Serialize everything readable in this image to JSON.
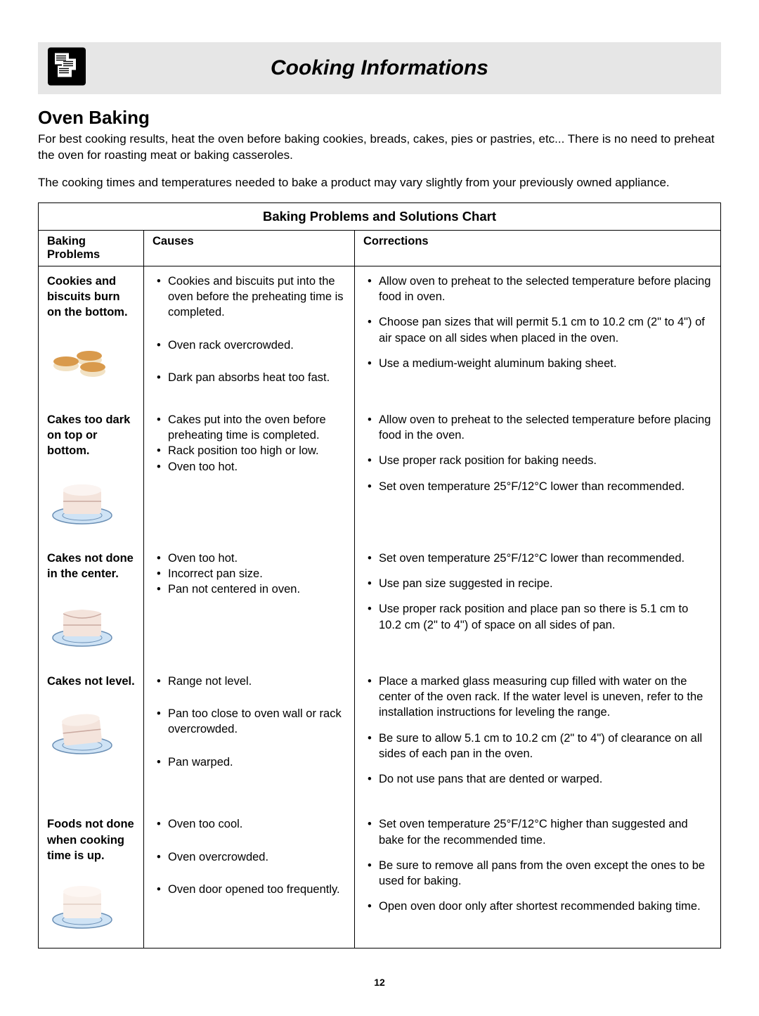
{
  "banner_title": "Cooking Informations",
  "section_heading": "Oven Baking",
  "intro_para1": "For best cooking results, heat the oven before baking cookies, breads, cakes, pies or pastries, etc...  There is no need to preheat the oven for roasting meat or baking casseroles.",
  "intro_para2": "The cooking times and temperatures needed to bake a product may vary slightly from your previously owned appliance.",
  "chart_title": "Baking Problems and Solutions Chart",
  "columns": {
    "c1": "Baking Problems",
    "c2": "Causes",
    "c3": "Corrections"
  },
  "rows": [
    {
      "problem": "Cookies and biscuits burn on the bottom.",
      "illus": "cookies",
      "causes": [
        "Cookies and biscuits put into the oven before the preheating time is completed.",
        "Oven rack overcrowded.",
        "Dark pan absorbs heat too fast."
      ],
      "cause_tight": [
        false,
        false,
        true
      ],
      "corrections": [
        "Allow oven to preheat to the selected temperature before placing food in oven.",
        "Choose pan sizes that will permit 5.1 cm to 10.2 cm (2\" to 4\") of air space on all sides when placed in the oven.",
        "Use a medium-weight aluminum baking sheet."
      ]
    },
    {
      "problem": "Cakes too dark on top or bottom.",
      "illus": "cake_dark",
      "causes": [
        "Cakes put into the oven before preheating time is completed.",
        "Rack position too high or low.",
        "Oven too hot."
      ],
      "cause_tight": [
        true,
        true,
        true
      ],
      "corrections": [
        "Allow oven to preheat to the selected temperature before placing food in the oven.",
        "Use proper rack position for baking needs.",
        "Set oven temperature 25°F/12°C lower than recommended."
      ]
    },
    {
      "problem": "Cakes not done in the center.",
      "illus": "cake_center",
      "causes": [
        "Oven too hot.",
        "Incorrect pan size.",
        "Pan not centered in oven."
      ],
      "cause_tight": [
        true,
        true,
        true
      ],
      "corrections": [
        "Set oven temperature 25°F/12°C lower than recommended.",
        "Use pan size suggested in recipe.",
        "Use proper rack position and place pan so there is 5.1 cm to 10.2 cm (2\" to 4\") of space on all sides of pan."
      ]
    },
    {
      "problem": "Cakes not level.",
      "illus": "cake_tilt",
      "causes": [
        "Range not level.",
        "Pan too close to oven wall or rack overcrowded.",
        "Pan warped."
      ],
      "cause_tight": [
        false,
        false,
        true
      ],
      "corrections": [
        "Place a marked glass measuring cup filled with water on the center of the oven rack.  If the water level is uneven, refer to the installation instructions for leveling the range.",
        "Be sure to allow 5.1 cm to 10.2 cm (2\" to 4\") of clearance on all sides of each pan in the oven.",
        "Do not use pans that are dented or warped."
      ]
    },
    {
      "problem": "Foods not done when cooking time is up.",
      "illus": "cake_pale",
      "causes": [
        "Oven too cool.",
        "Oven overcrowded.",
        "Oven door opened too frequently."
      ],
      "cause_tight": [
        false,
        false,
        true
      ],
      "corrections": [
        "Set oven temperature 25°F/12°C higher than suggested and bake for the recommended time.",
        "Be sure to remove all pans from the oven except the ones to be used for baking.",
        "Open oven door only after shortest recommended baking time."
      ]
    }
  ],
  "page_number": "12",
  "style": {
    "banner_bg": "#e6e6e6",
    "plate_fill": "#cfe3f5",
    "plate_stroke": "#6a8fb5",
    "cookie_top": "#d99a4c",
    "cookie_side": "#f2e2c4",
    "cake_body": "#f4e4dc",
    "cake_line": "#caa9a0",
    "cake_shadow": "#c9b5ae"
  }
}
